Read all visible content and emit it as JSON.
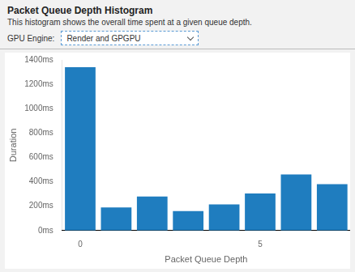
{
  "chart_data": {
    "type": "bar",
    "title": "Packet Queue Depth Histogram",
    "subtitle": "This histogram shows the overall time spent at a given queue depth.",
    "annotations": [
      "GPU Engine:",
      "Render and GPGPU"
    ],
    "x_label": "Packet Queue Depth",
    "y_label": "Duration",
    "categories": [
      "0",
      null,
      null,
      null,
      null,
      "5",
      null,
      null
    ],
    "values": [
      1340,
      190,
      280,
      160,
      215,
      305,
      460,
      380
    ],
    "color": "#1f7dbf",
    "ylim": [
      0,
      1400
    ],
    "yticks": [
      {
        "value": 0,
        "label": "0ms"
      },
      {
        "value": 200,
        "label": "200ms"
      },
      {
        "value": 400,
        "label": "400ms"
      },
      {
        "value": 600,
        "label": "600ms"
      },
      {
        "value": 800,
        "label": "800ms"
      },
      {
        "value": 1000,
        "label": "1000ms"
      },
      {
        "value": 1200,
        "label": "1200ms"
      },
      {
        "value": 1400,
        "label": "1400ms"
      }
    ],
    "grid": false
  }
}
